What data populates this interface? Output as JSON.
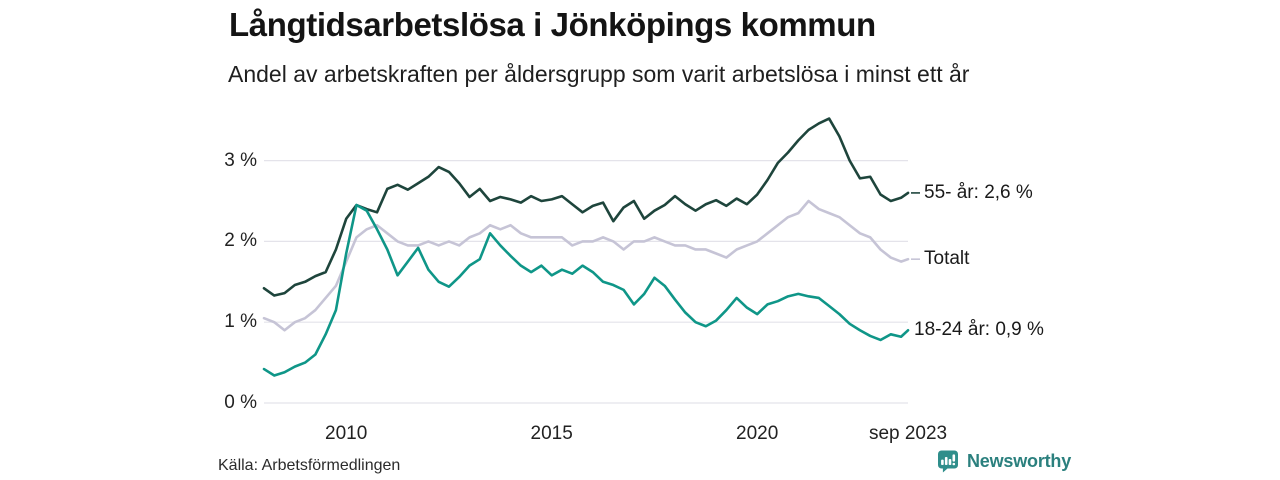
{
  "header": {
    "title": "Långtidsarbetslösa i Jönköpings kommun",
    "subtitle": "Andel av arbetskraften per åldersgrupp som varit arbetslösa i minst ett år"
  },
  "footer": {
    "source": "Källa: Arbetsförmedlingen",
    "brand": "Newsworthy",
    "brand_icon": "newsworthy-speech-bubble-bar-chart-icon",
    "brand_color": "#2f8e8b"
  },
  "chart_data": {
    "type": "line",
    "x_unit": "decimal year (monthly share of labour force, %)",
    "xlim": [
      2008,
      2023.75
    ],
    "ylim": [
      0,
      3.6
    ],
    "grid": "horizontal",
    "background": "#ffffff",
    "grid_color": "#e4e3ea",
    "yticks": {
      "values": [
        0,
        1,
        2,
        3
      ],
      "labels": [
        "0 %",
        "1 %",
        "2 %",
        "3 %"
      ]
    },
    "xticks": {
      "values": [
        2010,
        2015,
        2020,
        2023.67
      ],
      "labels": [
        "2010",
        "2015",
        "2020",
        "sep 2023"
      ]
    },
    "x": [
      2008,
      2008.25,
      2008.5,
      2008.75,
      2009,
      2009.25,
      2009.5,
      2009.75,
      2010,
      2010.25,
      2010.5,
      2010.75,
      2011,
      2011.25,
      2011.5,
      2011.75,
      2012,
      2012.25,
      2012.5,
      2012.75,
      2013,
      2013.25,
      2013.5,
      2013.75,
      2014,
      2014.25,
      2014.5,
      2014.75,
      2015,
      2015.25,
      2015.5,
      2015.75,
      2016,
      2016.25,
      2016.5,
      2016.75,
      2017,
      2017.25,
      2017.5,
      2017.75,
      2018,
      2018.25,
      2018.5,
      2018.75,
      2019,
      2019.25,
      2019.5,
      2019.75,
      2020,
      2020.25,
      2020.5,
      2020.75,
      2021,
      2021.25,
      2021.5,
      2021.75,
      2022,
      2022.25,
      2022.5,
      2022.75,
      2023,
      2023.25,
      2023.5,
      2023.67
    ],
    "series": [
      {
        "name": "55- år",
        "label": "55- år: 2,6 %",
        "latest_value": "2,6 %",
        "color": "#1e453c",
        "end_dash": true,
        "values": [
          1.42,
          1.33,
          1.36,
          1.46,
          1.5,
          1.57,
          1.62,
          1.9,
          2.28,
          2.45,
          2.4,
          2.36,
          2.65,
          2.7,
          2.64,
          2.72,
          2.8,
          2.92,
          2.86,
          2.72,
          2.55,
          2.65,
          2.5,
          2.55,
          2.52,
          2.48,
          2.56,
          2.5,
          2.52,
          2.56,
          2.46,
          2.36,
          2.44,
          2.48,
          2.25,
          2.42,
          2.5,
          2.28,
          2.38,
          2.45,
          2.56,
          2.46,
          2.38,
          2.46,
          2.51,
          2.44,
          2.53,
          2.46,
          2.58,
          2.76,
          2.97,
          3.1,
          3.25,
          3.38,
          3.46,
          3.52,
          3.3,
          3.0,
          2.78,
          2.8,
          2.58,
          2.5,
          2.54,
          2.6
        ]
      },
      {
        "name": "Totalt",
        "label": "Totalt",
        "color": "#c6c4d6",
        "end_dash": true,
        "values": [
          1.05,
          1.0,
          0.9,
          1.0,
          1.05,
          1.15,
          1.3,
          1.45,
          1.75,
          2.05,
          2.15,
          2.2,
          2.1,
          2.0,
          1.95,
          1.95,
          2.0,
          1.95,
          2.0,
          1.95,
          2.05,
          2.1,
          2.2,
          2.15,
          2.2,
          2.1,
          2.05,
          2.05,
          2.05,
          2.05,
          1.95,
          2.0,
          2.0,
          2.05,
          2.0,
          1.9,
          2.0,
          2.0,
          2.05,
          2.0,
          1.95,
          1.95,
          1.9,
          1.9,
          1.85,
          1.8,
          1.9,
          1.95,
          2.0,
          2.1,
          2.2,
          2.3,
          2.35,
          2.5,
          2.4,
          2.35,
          2.3,
          2.2,
          2.1,
          2.05,
          1.9,
          1.8,
          1.75,
          1.78
        ]
      },
      {
        "name": "18-24 år",
        "label": "18-24 år: 0,9 %",
        "latest_value": "0,9 %",
        "color": "#0f9688",
        "end_dash": false,
        "values": [
          0.42,
          0.34,
          0.38,
          0.45,
          0.5,
          0.6,
          0.85,
          1.15,
          1.85,
          2.45,
          2.38,
          2.15,
          1.9,
          1.58,
          1.75,
          1.92,
          1.65,
          1.5,
          1.44,
          1.56,
          1.7,
          1.78,
          2.1,
          1.95,
          1.82,
          1.7,
          1.62,
          1.7,
          1.58,
          1.65,
          1.6,
          1.7,
          1.62,
          1.5,
          1.46,
          1.4,
          1.22,
          1.35,
          1.55,
          1.45,
          1.28,
          1.12,
          1.0,
          0.95,
          1.02,
          1.15,
          1.3,
          1.18,
          1.1,
          1.22,
          1.26,
          1.32,
          1.35,
          1.32,
          1.3,
          1.2,
          1.1,
          0.98,
          0.9,
          0.83,
          0.78,
          0.85,
          0.82,
          0.9
        ]
      }
    ]
  }
}
